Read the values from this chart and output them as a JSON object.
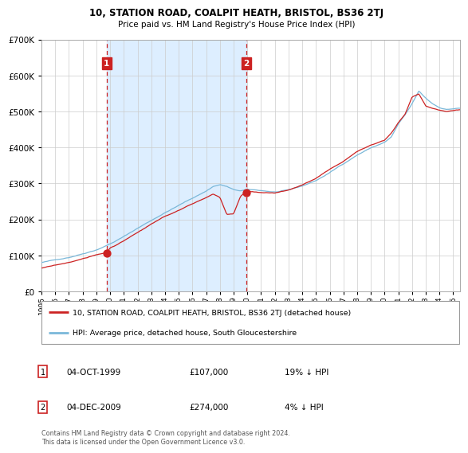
{
  "title": "10, STATION ROAD, COALPIT HEATH, BRISTOL, BS36 2TJ",
  "subtitle": "Price paid vs. HM Land Registry's House Price Index (HPI)",
  "legend_line1": "10, STATION ROAD, COALPIT HEATH, BRISTOL, BS36 2TJ (detached house)",
  "legend_line2": "HPI: Average price, detached house, South Gloucestershire",
  "annotation1_label": "1",
  "annotation1_date": "04-OCT-1999",
  "annotation1_price": "£107,000",
  "annotation1_hpi": "19% ↓ HPI",
  "annotation2_label": "2",
  "annotation2_date": "04-DEC-2009",
  "annotation2_price": "£274,000",
  "annotation2_hpi": "4% ↓ HPI",
  "footer": "Contains HM Land Registry data © Crown copyright and database right 2024.\nThis data is licensed under the Open Government Licence v3.0.",
  "sale1_year": 1999.75,
  "sale1_value": 107000,
  "sale2_year": 2009.92,
  "sale2_value": 274000,
  "xmin": 1995.0,
  "xmax": 2025.5,
  "ymin": 0,
  "ymax": 700000,
  "hpi_color": "#7ab8d9",
  "price_color": "#cc2222",
  "bg_highlight_color": "#ddeeff",
  "vline_color": "#cc2222",
  "annotation_box_color": "#cc2222",
  "grid_color": "#cccccc"
}
